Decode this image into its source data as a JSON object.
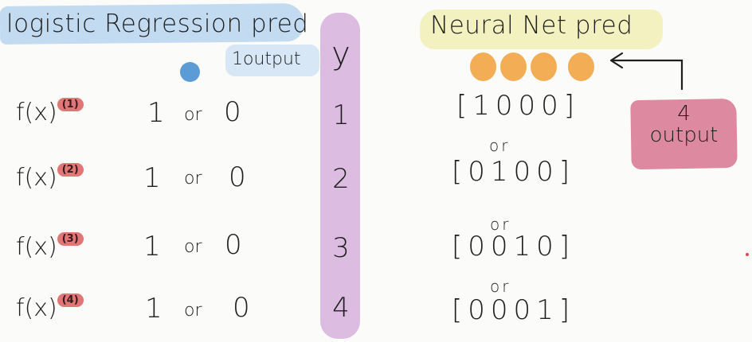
{
  "left": {
    "title": "logistic Regression pred",
    "output_label": "1output",
    "rows": [
      {
        "f": "f(x)",
        "sup": "(1)",
        "one": "1",
        "or": "or",
        "zero": "0"
      },
      {
        "f": "f(x)",
        "sup": "(2)",
        "one": "1",
        "or": "or",
        "zero": "0"
      },
      {
        "f": "f(x)",
        "sup": "(3)",
        "one": "1",
        "or": "or",
        "zero": "0"
      },
      {
        "f": "f(x)",
        "sup": "(4)",
        "one": "1",
        "or": "or",
        "zero": "0"
      }
    ]
  },
  "middle": {
    "header": "y",
    "values": [
      "1",
      "2",
      "3",
      "4"
    ]
  },
  "right": {
    "title": "Neural Net pred",
    "vectors": [
      "[1000]",
      "[0100]",
      "[0010]",
      "[0001]"
    ],
    "or_label": "or",
    "callout_top": "4",
    "callout_bottom": "output"
  },
  "colors": {
    "blue_highlight": "#b9d5ee",
    "yellow_highlight": "#f2f1bf",
    "purple_highlight": "#d6b0dc",
    "pink_highlight": "#dd8aa1",
    "blue_dot": "#5b9bd6",
    "orange_dot": "#f2ad55",
    "badge_red": "#e07676"
  }
}
